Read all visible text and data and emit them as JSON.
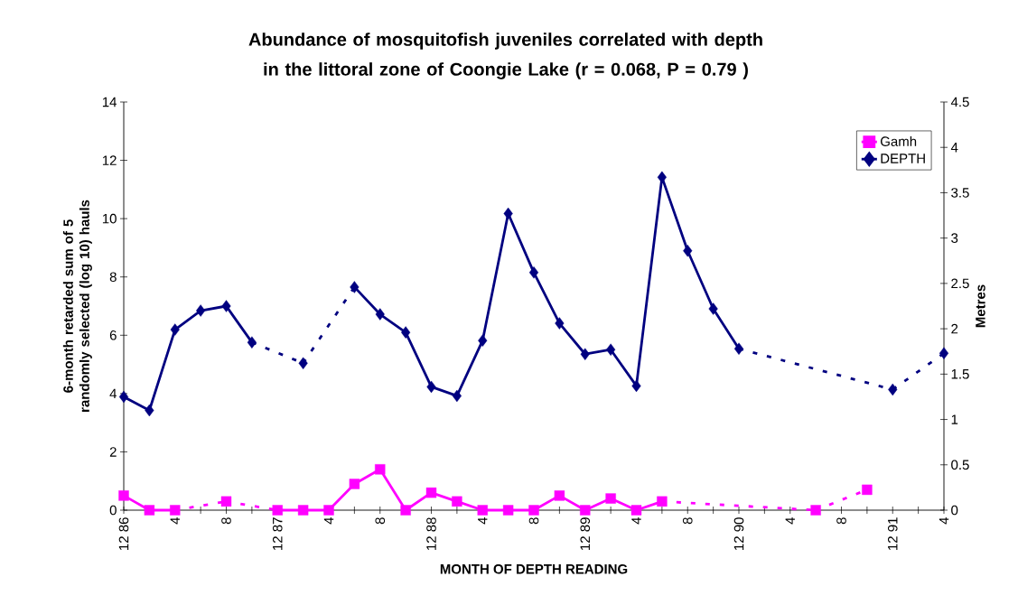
{
  "chart_data": {
    "type": "line",
    "title": "Abundance of mosquitofish juveniles correlated with depth in the littoral zone of Coongie Lake (r = 0.068, P = 0.79 )",
    "xlabel": "MONTH OF DEPTH READING",
    "ylabel": "6-month retarded sum of 5 randomly selected (log 10) hauls",
    "y2label": "Metres",
    "categories": [
      "12 86",
      null,
      "4",
      null,
      "8",
      null,
      "12 87",
      null,
      "4",
      null,
      "8",
      null,
      "12 88",
      null,
      "4",
      null,
      "8",
      null,
      "12 89",
      null,
      "4",
      null,
      "8",
      null,
      "12 90",
      null,
      "4",
      null,
      "8",
      null,
      "12 91",
      null,
      "4"
    ],
    "series": [
      {
        "name": "Gamh",
        "color": "#ff00ff",
        "marker": "square",
        "line_style": "solid",
        "axis": "y",
        "values": [
          0.5,
          0,
          0,
          null,
          0.3,
          null,
          0,
          0,
          0,
          0.9,
          1.4,
          0,
          0.6,
          0.3,
          0,
          0,
          0,
          0.5,
          0,
          0.4,
          0,
          0.3,
          null,
          null,
          null,
          null,
          null,
          0,
          null,
          0.7,
          null,
          null,
          null
        ]
      },
      {
        "name": "DEPTH",
        "color": "#000080",
        "marker": "diamond",
        "line_style": "solid",
        "axis": "y2",
        "values": [
          1.25,
          1.1,
          1.99,
          2.2,
          2.25,
          1.85,
          null,
          1.62,
          null,
          2.46,
          2.16,
          1.96,
          1.36,
          1.26,
          1.87,
          3.27,
          2.62,
          2.06,
          1.72,
          1.77,
          1.37,
          3.67,
          2.86,
          2.22,
          1.78,
          null,
          null,
          null,
          null,
          null,
          1.33,
          null,
          1.73
        ]
      }
    ],
    "ylim": [
      0,
      14
    ],
    "yticks": [
      0,
      2,
      4,
      6,
      8,
      10,
      12,
      14
    ],
    "y2lim": [
      0,
      4.5
    ],
    "y2ticks": [
      0,
      0.5,
      1,
      1.5,
      2,
      2.5,
      3,
      3.5,
      4,
      4.5
    ],
    "legend": "top right"
  }
}
